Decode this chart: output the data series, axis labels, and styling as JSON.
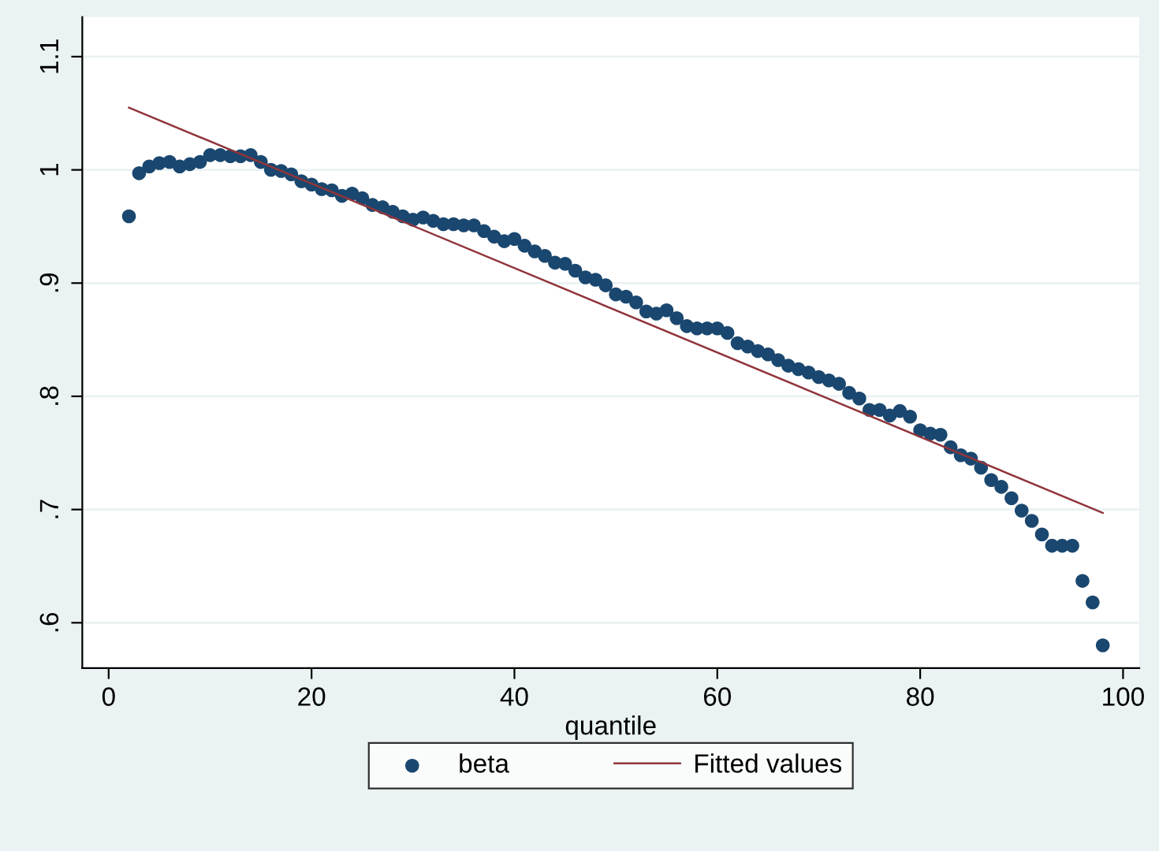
{
  "chart_data": {
    "type": "scatter",
    "xlabel": "quantile",
    "xlim": [
      -2.6,
      101.6
    ],
    "xticks": [
      0,
      20,
      40,
      60,
      80,
      100
    ],
    "ylim": [
      0.56,
      1.135
    ],
    "yticks": [
      {
        "value": 0.6,
        "label": ".6"
      },
      {
        "value": 0.7,
        "label": ".7"
      },
      {
        "value": 0.8,
        "label": ".8"
      },
      {
        "value": 0.9,
        "label": ".9"
      },
      {
        "value": 1,
        "label": "1"
      },
      {
        "value": 1.1,
        "label": "1.1"
      }
    ],
    "grid": "y",
    "legend": "bottom",
    "marker": "circle",
    "series": [
      {
        "name": "beta",
        "color": "#1a476f",
        "x": [
          2,
          3,
          4,
          5,
          6,
          7,
          8,
          9,
          10,
          11,
          12,
          13,
          14,
          15,
          16,
          17,
          18,
          19,
          20,
          21,
          22,
          23,
          24,
          25,
          26,
          27,
          28,
          29,
          30,
          31,
          32,
          33,
          34,
          35,
          36,
          37,
          38,
          39,
          40,
          41,
          42,
          43,
          44,
          45,
          46,
          47,
          48,
          49,
          50,
          51,
          52,
          53,
          54,
          55,
          56,
          57,
          58,
          59,
          60,
          61,
          62,
          63,
          64,
          65,
          66,
          67,
          68,
          69,
          70,
          71,
          72,
          73,
          74,
          75,
          76,
          77,
          78,
          79,
          80,
          81,
          82,
          83,
          84,
          85,
          86,
          87,
          88,
          89,
          90,
          91,
          92,
          93,
          94,
          95,
          96,
          97,
          98
        ],
        "values": [
          0.959,
          0.997,
          1.003,
          1.006,
          1.007,
          1.003,
          1.005,
          1.007,
          1.013,
          1.013,
          1.012,
          1.012,
          1.013,
          1.007,
          1.0,
          0.999,
          0.996,
          0.99,
          0.987,
          0.983,
          0.982,
          0.977,
          0.979,
          0.975,
          0.969,
          0.967,
          0.963,
          0.959,
          0.956,
          0.958,
          0.955,
          0.952,
          0.952,
          0.951,
          0.951,
          0.946,
          0.941,
          0.937,
          0.939,
          0.933,
          0.928,
          0.924,
          0.918,
          0.917,
          0.911,
          0.905,
          0.903,
          0.898,
          0.89,
          0.888,
          0.883,
          0.875,
          0.873,
          0.876,
          0.869,
          0.862,
          0.86,
          0.86,
          0.86,
          0.856,
          0.847,
          0.844,
          0.84,
          0.837,
          0.832,
          0.827,
          0.824,
          0.821,
          0.817,
          0.814,
          0.811,
          0.803,
          0.798,
          0.788,
          0.788,
          0.783,
          0.787,
          0.782,
          0.77,
          0.767,
          0.766,
          0.755,
          0.748,
          0.745,
          0.737,
          0.726,
          0.72,
          0.71,
          0.699,
          0.69,
          0.678,
          0.668,
          0.668,
          0.668,
          0.637,
          0.618,
          0.58
        ]
      },
      {
        "name": "Fitted values",
        "type": "line",
        "color": "#90353b",
        "line_style": "solid",
        "marker": "none",
        "x": [
          2,
          98
        ],
        "values": [
          1.055,
          0.697
        ]
      }
    ]
  }
}
